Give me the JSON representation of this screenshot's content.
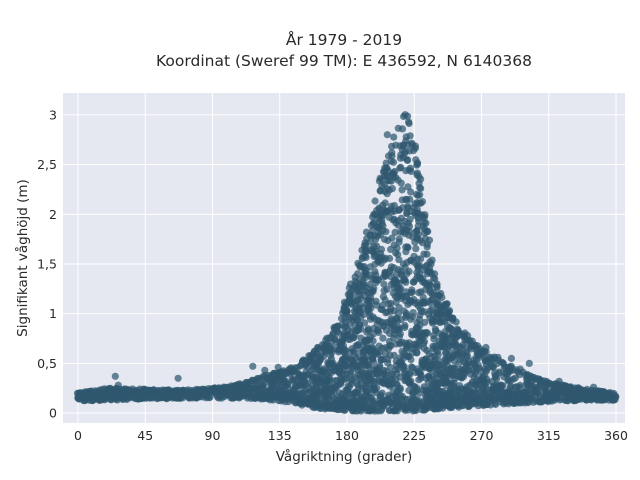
{
  "chart_data": {
    "type": "scatter",
    "title": [
      "År 1979 - 2019",
      "Koordinat (Sweref 99 TM): E 436592, N 6140368"
    ],
    "xlabel": "Vågriktning (grader)",
    "ylabel": "Signifikant våghöjd (m)",
    "xlim": [
      -10,
      366
    ],
    "ylim": [
      -0.1,
      3.22
    ],
    "x_ticks": [
      0,
      45,
      90,
      135,
      180,
      225,
      270,
      315,
      360
    ],
    "x_tick_labels": [
      "0",
      "45",
      "90",
      "135",
      "180",
      "225",
      "270",
      "315",
      "360"
    ],
    "y_ticks": [
      0,
      0.5,
      1,
      1.5,
      2,
      2.5,
      3
    ],
    "y_tick_labels": [
      "0",
      "0,5",
      "1",
      "1,5",
      "2",
      "2,5",
      "3"
    ],
    "grid": true,
    "marker_color": "#2f586f",
    "plot_background": "#e5e8f0",
    "envelope": {
      "description": "upper envelope of significant wave height by wave direction",
      "x": [
        0,
        20,
        45,
        70,
        90,
        110,
        125,
        135,
        145,
        155,
        165,
        175,
        182,
        190,
        197,
        205,
        212,
        218,
        222,
        226,
        232,
        240,
        248,
        256,
        265,
        275,
        285,
        295,
        305,
        315,
        325,
        340,
        360
      ],
      "y_max": [
        0.2,
        0.25,
        0.24,
        0.23,
        0.25,
        0.3,
        0.38,
        0.42,
        0.48,
        0.6,
        0.72,
        0.95,
        1.3,
        1.65,
        2.05,
        2.55,
        2.82,
        3.0,
        3.05,
        2.7,
        2.0,
        1.35,
        1.05,
        0.85,
        0.72,
        0.6,
        0.5,
        0.45,
        0.38,
        0.32,
        0.28,
        0.24,
        0.2
      ],
      "y_base": [
        0.12,
        0.13,
        0.14,
        0.15,
        0.15,
        0.15,
        0.14,
        0.12,
        0.1,
        0.06,
        0.04,
        0.03,
        0.02,
        0.02,
        0.02,
        0.02,
        0.02,
        0.02,
        0.02,
        0.02,
        0.03,
        0.04,
        0.05,
        0.06,
        0.07,
        0.08,
        0.09,
        0.1,
        0.1,
        0.11,
        0.12,
        0.13,
        0.13
      ]
    },
    "outliers": [
      {
        "x": 25,
        "y": 0.37
      },
      {
        "x": 27,
        "y": 0.28
      },
      {
        "x": 67,
        "y": 0.35
      },
      {
        "x": 117,
        "y": 0.47
      },
      {
        "x": 125,
        "y": 0.43
      },
      {
        "x": 134,
        "y": 0.46
      },
      {
        "x": 210,
        "y": 2.62
      },
      {
        "x": 217,
        "y": 2.65
      },
      {
        "x": 207,
        "y": 2.8
      },
      {
        "x": 198,
        "y": 2.0
      },
      {
        "x": 228,
        "y": 1.93
      },
      {
        "x": 232,
        "y": 1.85
      },
      {
        "x": 247,
        "y": 1.1
      },
      {
        "x": 262,
        "y": 0.72
      },
      {
        "x": 273,
        "y": 0.66
      },
      {
        "x": 281,
        "y": 0.56
      },
      {
        "x": 290,
        "y": 0.55
      },
      {
        "x": 302,
        "y": 0.5
      },
      {
        "x": 322,
        "y": 0.32
      },
      {
        "x": 345,
        "y": 0.26
      }
    ]
  }
}
